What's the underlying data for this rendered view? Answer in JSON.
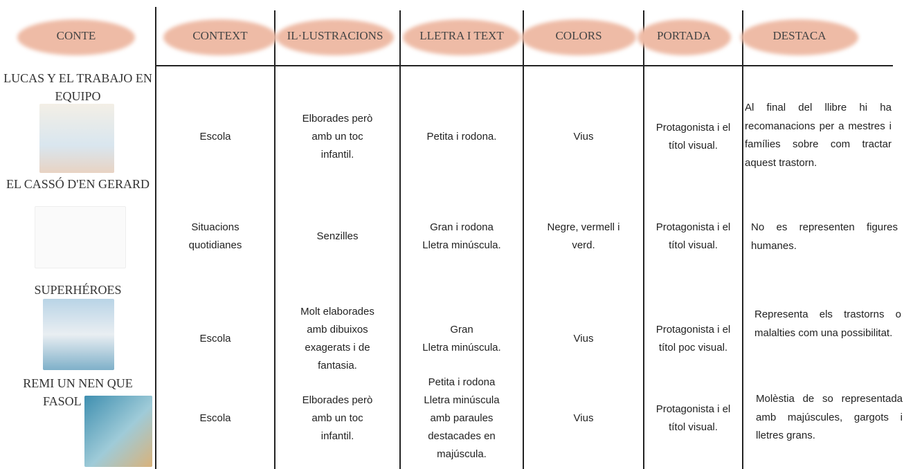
{
  "header": {
    "columns": [
      "CONTE",
      "CONTEXT",
      "IL·LUSTRACIONS",
      "LLETRA I TEXT",
      "COLORS",
      "PORTADA",
      "DESTACA"
    ]
  },
  "rows": [
    {
      "title": [
        "LUCAS Y EL TRABAJO EN",
        "EQUIPO"
      ],
      "context": [
        "Escola"
      ],
      "illustrations": [
        "Elborades però",
        "amb un toc",
        "infantil."
      ],
      "lettering": [
        "Petita i rodona."
      ],
      "colors": [
        "Vius"
      ],
      "cover": [
        "Protagonista i el",
        "títol visual."
      ],
      "highlight": "Al final del llibre hi ha recomanacions per a mestres i famílies sobre com tractar aquest trastorn."
    },
    {
      "title": [
        "EL CASSÓ D'EN GERARD"
      ],
      "context": [
        "Situacions",
        "quotidianes"
      ],
      "illustrations": [
        "Senzilles"
      ],
      "lettering": [
        "Gran i rodona",
        "Lletra minúscula."
      ],
      "colors": [
        "Negre, vermell i",
        "verd."
      ],
      "cover": [
        "Protagonista i el",
        "títol visual."
      ],
      "highlight": "No es representen figures humanes."
    },
    {
      "title": [
        "SUPERHÉROES"
      ],
      "context": [
        "Escola"
      ],
      "illustrations": [
        "Molt elaborades",
        "amb dibuixos",
        "exagerats i de",
        "fantasia."
      ],
      "lettering": [
        "Gran",
        "Lletra minúscula."
      ],
      "colors": [
        "Vius"
      ],
      "cover": [
        "Protagonista i el",
        "títol poc visual."
      ],
      "highlight": "Representa els trastorns o malalties com una possibilitat."
    },
    {
      "title": [
        "REMI UN NEN QUE",
        "FASOL"
      ],
      "context": [
        "Escola"
      ],
      "illustrations": [
        "Elborades però",
        "amb un toc",
        "infantil."
      ],
      "lettering": [
        "Petita i rodona",
        "Lletra minúscula",
        "amb paraules",
        "destacades en",
        "majúscula."
      ],
      "colors": [
        "Vius"
      ],
      "cover": [
        "Protagonista i el",
        "títol visual."
      ],
      "highlight": "Molèstia de so representada amb majúscules, gargots i lletres grans."
    }
  ]
}
